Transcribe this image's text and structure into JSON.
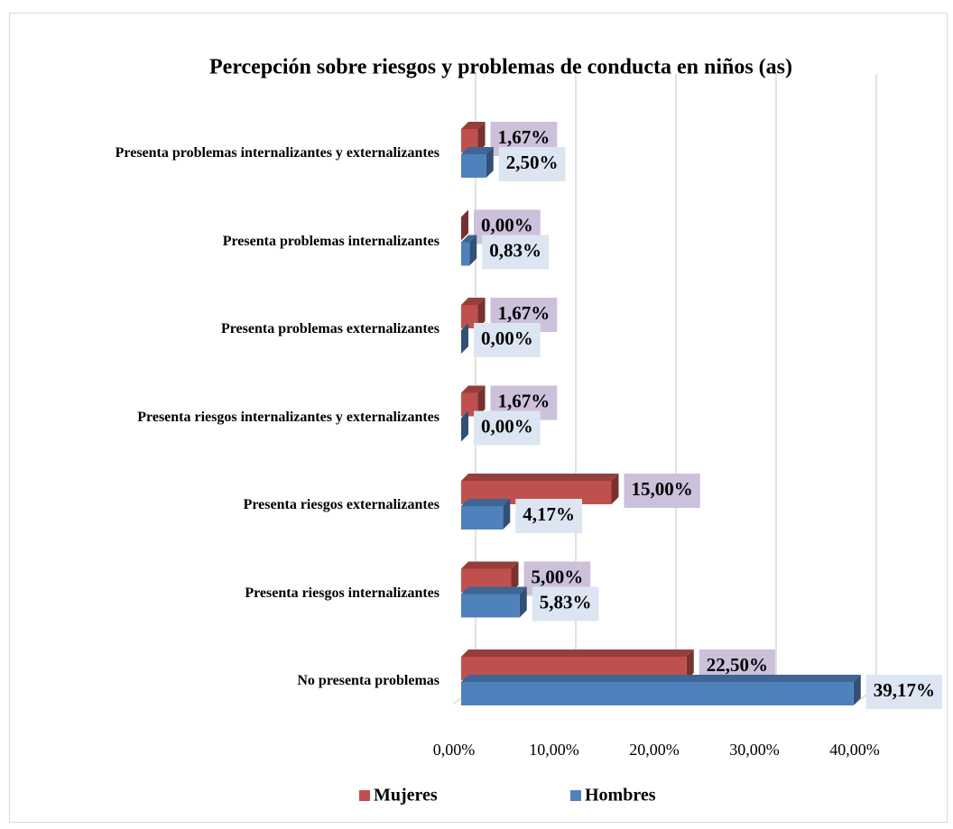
{
  "chart_data": {
    "type": "bar",
    "orientation": "horizontal",
    "title": "Percepción sobre riesgos y problemas de conducta en niños (as)",
    "categories": [
      "Presenta problemas internalizantes y externalizantes",
      "Presenta problemas internalizantes",
      "Presenta problemas externalizantes",
      "Presenta riesgos internalizantes y externalizantes",
      "Presenta riesgos externalizantes",
      "Presenta riesgos internalizantes",
      "No presenta problemas"
    ],
    "series": [
      {
        "name": "Mujeres",
        "color": "#c0504d",
        "values": [
          1.67,
          0,
          1.67,
          1.67,
          15,
          5,
          22.5
        ],
        "value_labels": [
          "1,67%",
          "0,00%",
          "1,67%",
          "1,67%",
          "15,00%",
          "5,00%",
          "22,50%"
        ]
      },
      {
        "name": "Hombres",
        "color": "#4f81bd",
        "values": [
          2.5,
          0.83,
          0,
          0,
          4.17,
          5.83,
          39.17
        ],
        "value_labels": [
          "2,50%",
          "0,83%",
          "0,00%",
          "0,00%",
          "4,17%",
          "5,83%",
          "39,17%"
        ]
      }
    ],
    "xlim": [
      0,
      40
    ],
    "xticks": [
      {
        "value": 0,
        "label": "0,00%"
      },
      {
        "value": 10,
        "label": "10,00%"
      },
      {
        "value": 20,
        "label": "20,00%"
      },
      {
        "value": 30,
        "label": "30,00%"
      },
      {
        "value": 40,
        "label": "40,00%"
      }
    ],
    "grid": true,
    "legend": "bottom"
  }
}
